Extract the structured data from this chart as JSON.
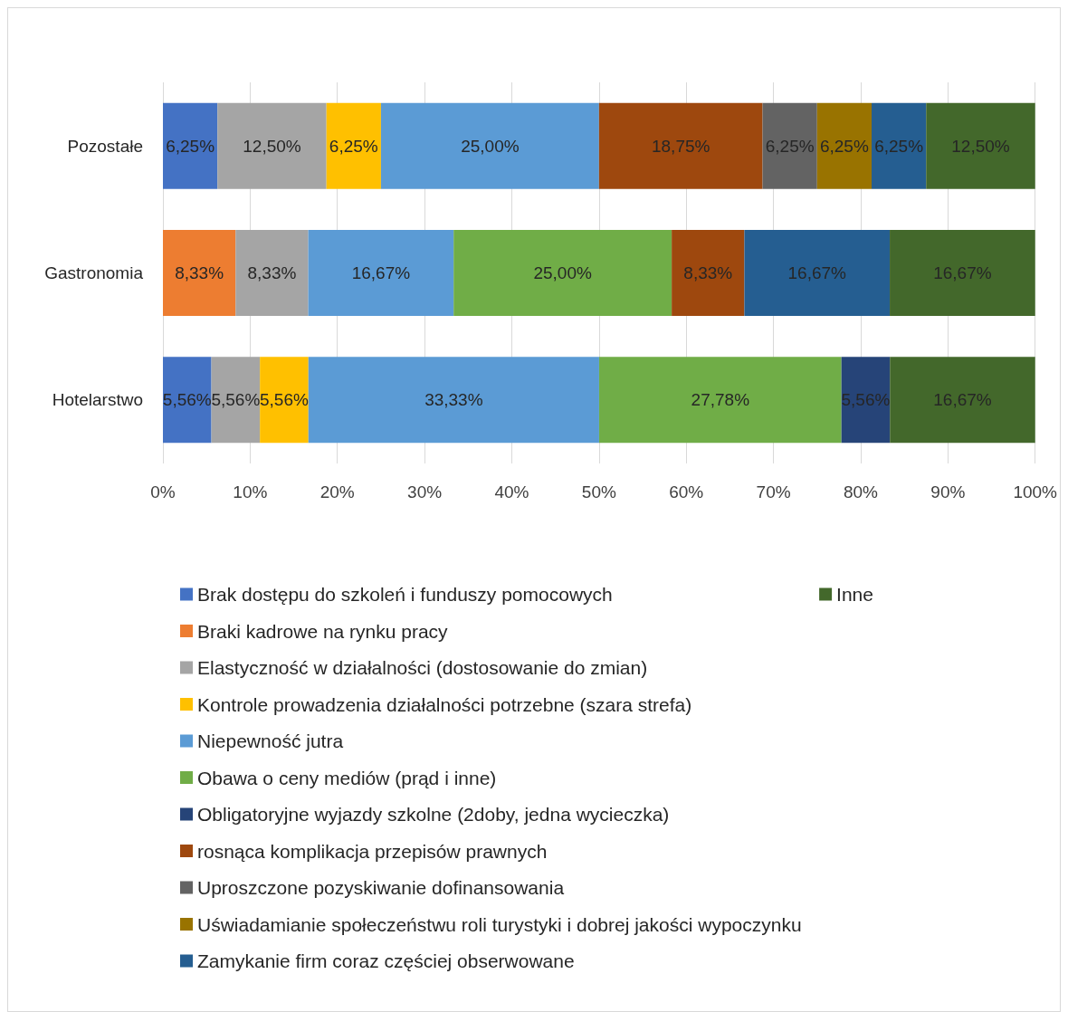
{
  "chart_data": {
    "type": "bar",
    "orientation": "horizontal",
    "stacked": true,
    "categories": [
      "Pozostałe",
      "Gastronomia",
      "Hotelarstwo"
    ],
    "xlim": [
      0,
      100
    ],
    "xticks": [
      {
        "value": 0,
        "label": "0%"
      },
      {
        "value": 10,
        "label": "10%"
      },
      {
        "value": 20,
        "label": "20%"
      },
      {
        "value": 30,
        "label": "30%"
      },
      {
        "value": 40,
        "label": "40%"
      },
      {
        "value": 50,
        "label": "50%"
      },
      {
        "value": 60,
        "label": "60%"
      },
      {
        "value": 70,
        "label": "70%"
      },
      {
        "value": 80,
        "label": "80%"
      },
      {
        "value": 90,
        "label": "90%"
      },
      {
        "value": 100,
        "label": "100%"
      }
    ],
    "grid": "x",
    "legend": "bottom",
    "series": [
      {
        "name": "Brak dostępu do szkoleń i funduszy pomocowych",
        "color": "#4472c4",
        "values": [
          6.25,
          null,
          5.56
        ],
        "value_labels": [
          "6,25%",
          null,
          "5,56%"
        ]
      },
      {
        "name": "Braki kadrowe na rynku pracy",
        "color": "#ed7d31",
        "values": [
          null,
          8.33,
          null
        ],
        "value_labels": [
          null,
          "8,33%",
          null
        ]
      },
      {
        "name": "Elastyczność w działalności (dostosowanie do zmian)",
        "color": "#a5a5a5",
        "values": [
          12.5,
          8.33,
          5.56
        ],
        "value_labels": [
          "12,50%",
          "8,33%",
          "5,56%"
        ]
      },
      {
        "name": "Kontrole prowadzenia działalności potrzebne (szara strefa)",
        "color": "#ffc000",
        "values": [
          6.25,
          null,
          5.56
        ],
        "value_labels": [
          "6,25%",
          null,
          "5,56%"
        ]
      },
      {
        "name": "Niepewność jutra",
        "color": "#5b9bd5",
        "values": [
          25,
          16.67,
          33.33
        ],
        "value_labels": [
          "25,00%",
          "16,67%",
          "33,33%"
        ]
      },
      {
        "name": "Obawa o ceny mediów (prąd i inne)",
        "color": "#70ad47",
        "values": [
          null,
          25,
          27.78
        ],
        "value_labels": [
          null,
          "25,00%",
          "27,78%"
        ]
      },
      {
        "name": "Obligatoryjne wyjazdy szkolne (2doby, jedna wycieczka)",
        "color": "#264478",
        "values": [
          null,
          null,
          5.56
        ],
        "value_labels": [
          null,
          null,
          "5,56%"
        ]
      },
      {
        "name": "rosnąca komplikacja przepisów prawnych",
        "color": "#9e480e",
        "values": [
          18.75,
          8.33,
          null
        ],
        "value_labels": [
          "18,75%",
          "8,33%",
          null
        ]
      },
      {
        "name": "Uproszczone pozyskiwanie dofinansowania",
        "color": "#636363",
        "values": [
          6.25,
          null,
          null
        ],
        "value_labels": [
          "6,25%",
          null,
          null
        ]
      },
      {
        "name": "Uświadamianie społeczeństwu roli turystyki i dobrej jakości wypoczynku",
        "color": "#997300",
        "values": [
          6.25,
          null,
          null
        ],
        "value_labels": [
          "6,25%",
          null,
          null
        ]
      },
      {
        "name": "Zamykanie firm coraz częściej obserwowane",
        "color": "#255e91",
        "values": [
          6.25,
          16.67,
          null
        ],
        "value_labels": [
          "6,25%",
          "16,67%",
          null
        ]
      },
      {
        "name": "Inne",
        "color": "#43682b",
        "values": [
          12.5,
          16.67,
          16.67
        ],
        "value_labels": [
          "12,50%",
          "16,67%",
          "16,67%"
        ]
      }
    ]
  }
}
